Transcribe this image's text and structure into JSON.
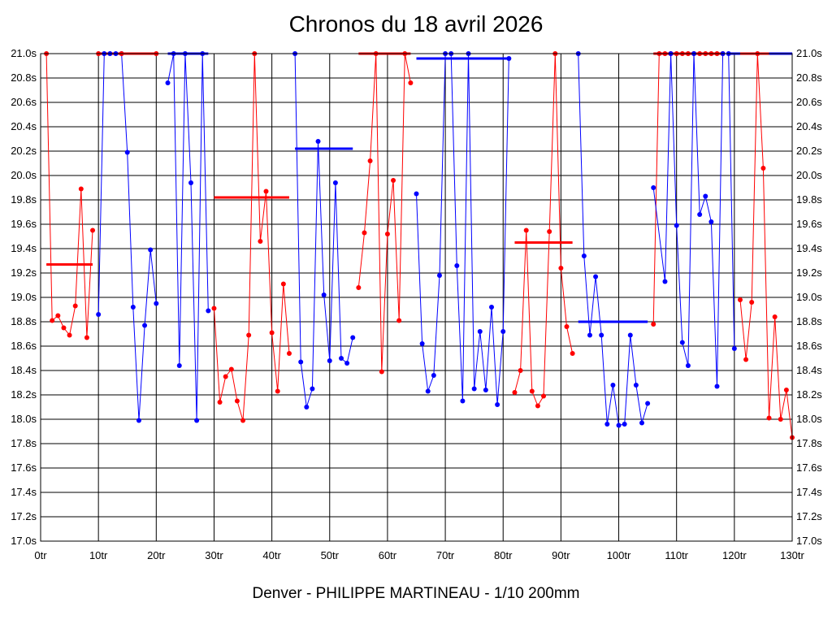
{
  "chart_data": {
    "type": "line",
    "title": "Chronos du 18 avril 2026",
    "footer": "Denver - PHILIPPE MARTINEAU - 1/10 200mm",
    "xlim": [
      0,
      130
    ],
    "ylim": [
      17.0,
      21.0
    ],
    "grid": true,
    "x_ticks": [
      0,
      10,
      20,
      30,
      40,
      50,
      60,
      70,
      80,
      90,
      100,
      110,
      120,
      130
    ],
    "x_tick_labels": [
      "0tr",
      "10tr",
      "20tr",
      "30tr",
      "40tr",
      "50tr",
      "60tr",
      "70tr",
      "80tr",
      "90tr",
      "100tr",
      "110tr",
      "120tr",
      "130tr"
    ],
    "y_ticks": [
      21.0,
      20.8,
      20.6,
      20.4,
      20.2,
      20.0,
      19.8,
      19.6,
      19.4,
      19.2,
      19.0,
      18.8,
      18.6,
      18.4,
      18.2,
      18.0,
      17.8,
      17.6,
      17.4,
      17.2,
      17.0
    ],
    "y_tick_labels": [
      "21.0s",
      "20.8s",
      "20.6s",
      "20.4s",
      "20.2s",
      "20.0s",
      "19.8s",
      "19.6s",
      "19.4s",
      "19.2s",
      "19.0s",
      "18.8s",
      "18.6s",
      "18.4s",
      "18.2s",
      "18.0s",
      "17.8s",
      "17.6s",
      "17.4s",
      "17.2s",
      "17.0s"
    ],
    "colors": {
      "red": "#ff0000",
      "blue": "#0000ff",
      "grid": "#000000"
    },
    "series": [
      {
        "name": "run1",
        "color": "red",
        "points": [
          [
            1,
            21.0
          ],
          [
            2,
            18.81
          ],
          [
            3,
            18.85
          ],
          [
            4,
            18.75
          ],
          [
            5,
            18.69
          ],
          [
            6,
            18.93
          ],
          [
            7,
            19.89
          ],
          [
            8,
            18.67
          ],
          [
            9,
            19.55
          ]
        ],
        "average": 19.27,
        "avg_range": [
          1,
          9
        ]
      },
      {
        "name": "run2",
        "color": "blue",
        "points": [
          [
            10,
            18.86
          ],
          [
            11,
            21.0
          ],
          [
            12,
            21.0
          ],
          [
            13,
            21.0
          ],
          [
            14,
            21.0
          ],
          [
            15,
            20.19
          ],
          [
            16,
            18.92
          ],
          [
            17,
            17.99
          ],
          [
            18,
            18.77
          ],
          [
            19,
            19.39
          ],
          [
            20,
            18.95
          ]
        ],
        "average": 21.0,
        "avg_range": [
          10,
          20
        ]
      },
      {
        "name": "run3",
        "color": "red",
        "points": [
          [
            10,
            21.0
          ],
          [
            14,
            21.0
          ],
          [
            20,
            21.0
          ]
        ],
        "average": 21.0,
        "avg_range": [
          10,
          20
        ]
      },
      {
        "name": "run4",
        "color": "blue",
        "points": [
          [
            22,
            20.76
          ],
          [
            23,
            21.0
          ],
          [
            24,
            18.44
          ],
          [
            25,
            21.0
          ],
          [
            26,
            19.94
          ],
          [
            27,
            17.99
          ],
          [
            28,
            21.0
          ],
          [
            29,
            18.89
          ]
        ],
        "average": 21.0,
        "avg_range": [
          22,
          29
        ]
      },
      {
        "name": "run5",
        "color": "red",
        "points": [
          [
            30,
            18.91
          ],
          [
            31,
            18.14
          ],
          [
            32,
            18.35
          ],
          [
            33,
            18.41
          ],
          [
            34,
            18.15
          ],
          [
            35,
            17.99
          ],
          [
            36,
            18.69
          ],
          [
            37,
            21.0
          ],
          [
            38,
            19.46
          ],
          [
            39,
            19.87
          ],
          [
            40,
            18.71
          ],
          [
            41,
            18.23
          ],
          [
            42,
            19.11
          ],
          [
            43,
            18.54
          ]
        ],
        "average": 19.82,
        "avg_range": [
          30,
          43
        ]
      },
      {
        "name": "run6",
        "color": "blue",
        "points": [
          [
            44,
            21.0
          ],
          [
            45,
            18.47
          ],
          [
            46,
            18.1
          ],
          [
            47,
            18.25
          ],
          [
            48,
            20.28
          ],
          [
            49,
            19.02
          ],
          [
            50,
            18.48
          ],
          [
            51,
            19.94
          ],
          [
            52,
            18.5
          ],
          [
            53,
            18.46
          ],
          [
            54,
            18.67
          ]
        ],
        "average": 20.22,
        "avg_range": [
          44,
          54
        ]
      },
      {
        "name": "run7",
        "color": "red",
        "points": [
          [
            55,
            19.08
          ],
          [
            56,
            19.53
          ],
          [
            57,
            20.12
          ],
          [
            58,
            21.0
          ],
          [
            59,
            18.39
          ],
          [
            60,
            19.52
          ],
          [
            61,
            19.96
          ],
          [
            62,
            18.81
          ],
          [
            63,
            21.0
          ],
          [
            64,
            20.76
          ]
        ],
        "average": 21.0,
        "avg_range": [
          55,
          64
        ]
      },
      {
        "name": "run8",
        "color": "blue",
        "points": [
          [
            65,
            19.85
          ],
          [
            66,
            18.62
          ],
          [
            67,
            18.23
          ],
          [
            68,
            18.36
          ],
          [
            69,
            19.18
          ],
          [
            70,
            21.0
          ],
          [
            71,
            21.0
          ],
          [
            72,
            19.26
          ],
          [
            73,
            18.15
          ],
          [
            74,
            21.0
          ],
          [
            75,
            18.25
          ],
          [
            76,
            18.72
          ],
          [
            77,
            18.24
          ],
          [
            78,
            18.92
          ],
          [
            79,
            18.12
          ],
          [
            80,
            18.72
          ],
          [
            81,
            20.96
          ]
        ],
        "average": 20.96,
        "avg_range": [
          65,
          81
        ]
      },
      {
        "name": "run9",
        "color": "red",
        "points": [
          [
            82,
            18.22
          ],
          [
            83,
            18.4
          ],
          [
            84,
            19.55
          ],
          [
            85,
            18.23
          ],
          [
            86,
            18.11
          ],
          [
            87,
            18.19
          ],
          [
            88,
            19.54
          ],
          [
            89,
            21.0
          ],
          [
            90,
            19.24
          ],
          [
            91,
            18.76
          ],
          [
            92,
            18.54
          ]
        ],
        "average": 19.45,
        "avg_range": [
          82,
          92
        ]
      },
      {
        "name": "run10",
        "color": "blue",
        "points": [
          [
            93,
            21.0
          ],
          [
            94,
            19.34
          ],
          [
            95,
            18.69
          ],
          [
            96,
            19.17
          ],
          [
            97,
            18.69
          ],
          [
            98,
            17.96
          ],
          [
            99,
            18.28
          ],
          [
            100,
            17.95
          ],
          [
            101,
            17.96
          ],
          [
            102,
            18.69
          ],
          [
            103,
            18.28
          ],
          [
            104,
            17.97
          ],
          [
            105,
            18.13
          ]
        ],
        "average": 18.8,
        "avg_range": [
          93,
          105
        ]
      },
      {
        "name": "run11",
        "color": "red",
        "points": [
          [
            106,
            18.78
          ],
          [
            107,
            21.0
          ],
          [
            108,
            21.0
          ],
          [
            109,
            21.0
          ],
          [
            110,
            21.0
          ],
          [
            111,
            21.0
          ],
          [
            112,
            21.0
          ],
          [
            113,
            21.0
          ],
          [
            114,
            21.0
          ],
          [
            115,
            21.0
          ],
          [
            116,
            21.0
          ],
          [
            117,
            21.0
          ],
          [
            118,
            21.0
          ]
        ],
        "average": 21.0,
        "avg_range": [
          106,
          118
        ]
      },
      {
        "name": "run12",
        "color": "blue",
        "points": [
          [
            106,
            19.9
          ],
          [
            108,
            19.13
          ],
          [
            109,
            21.0
          ],
          [
            110,
            19.59
          ],
          [
            111,
            18.63
          ],
          [
            112,
            18.44
          ],
          [
            113,
            21.0
          ],
          [
            114,
            19.68
          ],
          [
            115,
            19.83
          ],
          [
            116,
            19.62
          ],
          [
            117,
            18.27
          ],
          [
            118,
            21.0
          ],
          [
            119,
            21.0
          ],
          [
            120,
            18.58
          ]
        ],
        "average": 21.0,
        "avg_range": [
          119,
          130
        ]
      },
      {
        "name": "run13",
        "color": "red",
        "points": [
          [
            121,
            18.98
          ],
          [
            122,
            18.49
          ],
          [
            123,
            18.96
          ],
          [
            124,
            21.0
          ],
          [
            125,
            20.06
          ],
          [
            126,
            18.01
          ],
          [
            127,
            18.84
          ],
          [
            128,
            18.0
          ],
          [
            129,
            18.24
          ],
          [
            130,
            17.85
          ]
        ],
        "average": 21.0,
        "avg_range": [
          121,
          126
        ]
      }
    ]
  }
}
